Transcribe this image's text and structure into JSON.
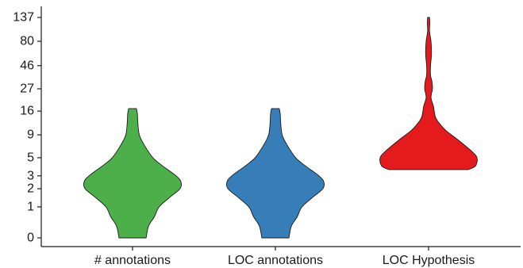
{
  "chart_data": {
    "type": "violin",
    "title": "",
    "xlabel": "",
    "ylabel": "",
    "y_scale": "pseudo-log",
    "ylim": [
      0,
      137
    ],
    "y_ticks": [
      "0",
      "1",
      "2",
      "3",
      "5",
      "9",
      "16",
      "27",
      "46",
      "80",
      "137"
    ],
    "y_tick_values": [
      0,
      1,
      2,
      3,
      5,
      9,
      16,
      27,
      46,
      80,
      137
    ],
    "grid": false,
    "legend": "none",
    "categories": [
      "# annotations",
      "LOC annotations",
      "LOC Hypothesis"
    ],
    "series": [
      {
        "category": "# annotations",
        "color": "#4daf4a",
        "range": [
          0,
          17
        ],
        "density": [
          [
            0,
            0.28
          ],
          [
            0.3,
            0.33
          ],
          [
            0.6,
            0.45
          ],
          [
            1,
            0.55
          ],
          [
            1.5,
            0.78
          ],
          [
            2,
            0.98
          ],
          [
            2.5,
            1.0
          ],
          [
            3,
            0.9
          ],
          [
            4,
            0.62
          ],
          [
            5,
            0.42
          ],
          [
            7,
            0.24
          ],
          [
            9,
            0.14
          ],
          [
            12,
            0.11
          ],
          [
            15,
            0.1
          ],
          [
            17,
            0.08
          ]
        ]
      },
      {
        "category": "LOC annotations",
        "color": "#377eb8",
        "range": [
          0,
          17
        ],
        "density": [
          [
            0,
            0.28
          ],
          [
            0.3,
            0.33
          ],
          [
            0.6,
            0.45
          ],
          [
            1,
            0.55
          ],
          [
            1.5,
            0.78
          ],
          [
            2,
            0.98
          ],
          [
            2.5,
            1.0
          ],
          [
            3,
            0.9
          ],
          [
            4,
            0.62
          ],
          [
            5,
            0.42
          ],
          [
            7,
            0.24
          ],
          [
            9,
            0.14
          ],
          [
            12,
            0.11
          ],
          [
            15,
            0.1
          ],
          [
            17,
            0.08
          ]
        ]
      },
      {
        "category": "LOC Hypothesis",
        "color": "#e41a1c",
        "range": [
          3.6,
          137
        ],
        "density": [
          [
            3.6,
            0.82
          ],
          [
            4,
            0.97
          ],
          [
            5,
            1.0
          ],
          [
            6,
            0.88
          ],
          [
            8,
            0.6
          ],
          [
            10,
            0.36
          ],
          [
            12,
            0.22
          ],
          [
            14,
            0.14
          ],
          [
            18,
            0.1
          ],
          [
            22,
            0.05
          ],
          [
            27,
            0.08
          ],
          [
            32,
            0.07
          ],
          [
            37,
            0.04
          ],
          [
            46,
            0.04
          ],
          [
            60,
            0.06
          ],
          [
            80,
            0.05
          ],
          [
            100,
            0.02
          ],
          [
            120,
            0.025
          ],
          [
            137,
            0.02
          ]
        ]
      }
    ]
  }
}
